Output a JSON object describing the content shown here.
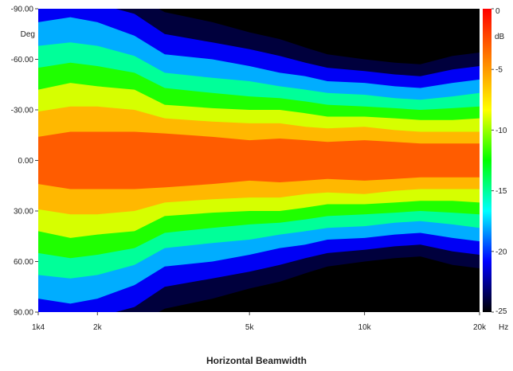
{
  "chart_data": {
    "type": "heatmap",
    "title": "Horizontal Beamwidth",
    "x_axis": {
      "scale": "log",
      "range": [
        1400,
        20000
      ],
      "ticks": [
        {
          "value": 1400,
          "label": "1k4"
        },
        {
          "value": 2000,
          "label": "2k"
        },
        {
          "value": 5000,
          "label": "5k"
        },
        {
          "value": 10000,
          "label": "10k"
        },
        {
          "value": 20000,
          "label": "20k"
        }
      ],
      "unit": "Hz"
    },
    "y_axis": {
      "range": [
        -90,
        90
      ],
      "unit": "Deg",
      "ticks": [
        {
          "value": -90,
          "label": "-90.00"
        },
        {
          "value": -60,
          "label": "-60.00"
        },
        {
          "value": -30,
          "label": "-30.00"
        },
        {
          "value": 0,
          "label": "0.00"
        },
        {
          "value": 30,
          "label": "30.00"
        },
        {
          "value": 60,
          "label": "60.00"
        },
        {
          "value": 90,
          "label": "90.00"
        }
      ]
    },
    "colorbar": {
      "unit": "dB",
      "range": [
        -25,
        0
      ],
      "ticks": [
        {
          "value": 0,
          "label": "0"
        },
        {
          "value": -5,
          "label": "-5"
        },
        {
          "value": -10,
          "label": "-10"
        },
        {
          "value": -15,
          "label": "-15"
        },
        {
          "value": -20,
          "label": "-20"
        },
        {
          "value": -25,
          "label": "-25"
        }
      ],
      "stops": [
        "#ff0000",
        "#ff8000",
        "#ffff00",
        "#00ff00",
        "#00ffff",
        "#0000ff",
        "#000000"
      ]
    },
    "contours": {
      "frequency_hz": [
        1400,
        1700,
        2000,
        2500,
        3000,
        4000,
        5000,
        6000,
        7000,
        8000,
        10000,
        12000,
        14000,
        17000,
        20000
      ],
      "level_db": [
        -3,
        -6,
        -9,
        -12,
        -15,
        -18,
        -21,
        -24
      ],
      "angle_deg": [
        [
          14,
          17,
          17,
          17,
          16,
          14,
          12,
          13,
          12,
          11,
          12,
          11,
          10,
          10,
          10
        ],
        [
          29,
          32,
          32,
          30,
          25,
          23,
          22,
          22,
          20,
          19,
          20,
          18,
          17,
          17,
          17
        ],
        [
          42,
          46,
          44,
          42,
          33,
          31,
          30,
          30,
          28,
          26,
          26,
          25,
          24,
          24,
          25
        ],
        [
          55,
          58,
          56,
          52,
          43,
          40,
          38,
          37,
          35,
          33,
          32,
          31,
          30,
          31,
          32
        ],
        [
          68,
          70,
          68,
          62,
          52,
          49,
          47,
          44,
          42,
          40,
          39,
          37,
          36,
          38,
          40
        ],
        [
          82,
          85,
          82,
          74,
          63,
          60,
          56,
          52,
          50,
          47,
          46,
          44,
          43,
          46,
          48
        ],
        [
          92,
          95,
          93,
          87,
          75,
          70,
          66,
          62,
          58,
          55,
          53,
          51,
          50,
          54,
          56
        ],
        [
          100,
          100,
          100,
          98,
          88,
          82,
          76,
          72,
          67,
          63,
          60,
          58,
          57,
          62,
          64
        ]
      ]
    }
  }
}
